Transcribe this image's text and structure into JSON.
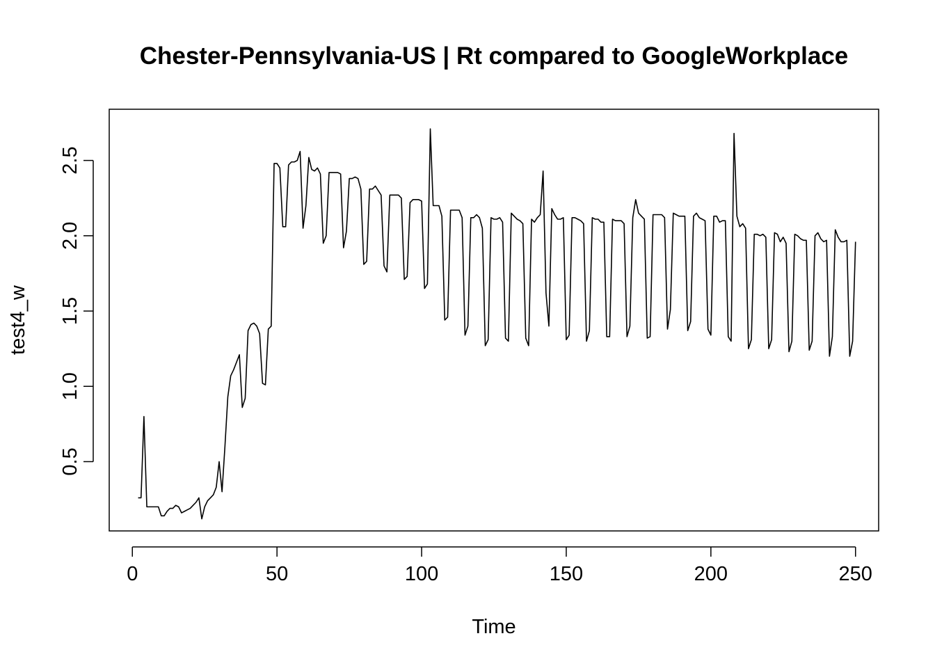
{
  "chart_data": {
    "type": "line",
    "title": "Chester-Pennsylvania-US | Rt compared to GoogleWorkplace",
    "xlabel": "Time",
    "ylabel": "test4_w",
    "xlim": [
      -8,
      258
    ],
    "ylim": [
      0.04,
      2.84
    ],
    "x_ticks": [
      0,
      50,
      100,
      150,
      200,
      250
    ],
    "y_ticks": [
      0.5,
      1.0,
      1.5,
      2.0,
      2.5
    ],
    "x_tick_labels": [
      "0",
      "50",
      "100",
      "150",
      "200",
      "250"
    ],
    "y_tick_labels": [
      "0.5",
      "1.0",
      "1.5",
      "2.0",
      "2.5"
    ],
    "grid": false,
    "series": [
      {
        "x_start": 2,
        "values": [
          0.26,
          0.26,
          0.8,
          0.2,
          0.2,
          0.2,
          0.2,
          0.2,
          0.14,
          0.14,
          0.17,
          0.19,
          0.19,
          0.21,
          0.2,
          0.16,
          0.17,
          0.18,
          0.19,
          0.21,
          0.23,
          0.26,
          0.12,
          0.2,
          0.24,
          0.26,
          0.28,
          0.33,
          0.5,
          0.3,
          0.6,
          0.93,
          1.07,
          1.11,
          1.16,
          1.21,
          0.86,
          0.92,
          1.37,
          1.41,
          1.42,
          1.4,
          1.35,
          1.02,
          1.01,
          1.38,
          1.4,
          2.48,
          2.48,
          2.45,
          2.06,
          2.06,
          2.47,
          2.49,
          2.49,
          2.5,
          2.56,
          2.05,
          2.2,
          2.52,
          2.44,
          2.43,
          2.45,
          2.41,
          1.95,
          2.0,
          2.42,
          2.42,
          2.42,
          2.42,
          2.41,
          1.92,
          2.03,
          2.38,
          2.38,
          2.39,
          2.38,
          2.31,
          1.81,
          1.83,
          2.31,
          2.31,
          2.33,
          2.3,
          2.27,
          1.8,
          1.76,
          2.27,
          2.27,
          2.27,
          2.27,
          2.25,
          1.71,
          1.73,
          2.22,
          2.24,
          2.24,
          2.24,
          2.23,
          1.65,
          1.68,
          2.71,
          2.2,
          2.2,
          2.2,
          2.13,
          1.44,
          1.46,
          2.17,
          2.17,
          2.17,
          2.17,
          2.12,
          1.34,
          1.4,
          2.12,
          2.12,
          2.14,
          2.12,
          2.05,
          1.27,
          1.31,
          2.12,
          2.11,
          2.11,
          2.12,
          2.09,
          1.32,
          1.3,
          2.15,
          2.13,
          2.11,
          2.1,
          2.08,
          1.32,
          1.27,
          2.11,
          2.09,
          2.12,
          2.14,
          2.43,
          1.62,
          1.4,
          2.18,
          2.14,
          2.11,
          2.11,
          2.12,
          1.31,
          1.34,
          2.12,
          2.12,
          2.11,
          2.1,
          2.08,
          1.3,
          1.37,
          2.12,
          2.11,
          2.11,
          2.09,
          2.09,
          1.33,
          1.33,
          2.11,
          2.1,
          2.1,
          2.1,
          2.08,
          1.33,
          1.4,
          2.12,
          2.24,
          2.15,
          2.13,
          2.11,
          1.32,
          1.33,
          2.14,
          2.14,
          2.14,
          2.14,
          2.12,
          1.38,
          1.51,
          2.15,
          2.14,
          2.13,
          2.13,
          2.13,
          1.37,
          1.43,
          2.13,
          2.15,
          2.12,
          2.11,
          2.1,
          1.38,
          1.34,
          2.13,
          2.13,
          2.09,
          2.1,
          2.1,
          1.33,
          1.3,
          2.68,
          2.13,
          2.06,
          2.08,
          2.05,
          1.25,
          1.31,
          2.01,
          2.01,
          2.0,
          2.01,
          1.99,
          1.25,
          1.31,
          2.02,
          2.01,
          1.96,
          1.99,
          1.95,
          1.23,
          1.3,
          2.01,
          2.0,
          1.98,
          1.97,
          1.97,
          1.24,
          1.3,
          2.0,
          2.02,
          1.98,
          1.96,
          1.97,
          1.2,
          1.33,
          2.04,
          1.99,
          1.96,
          1.96,
          1.97,
          1.2,
          1.3,
          1.96
        ]
      }
    ]
  }
}
